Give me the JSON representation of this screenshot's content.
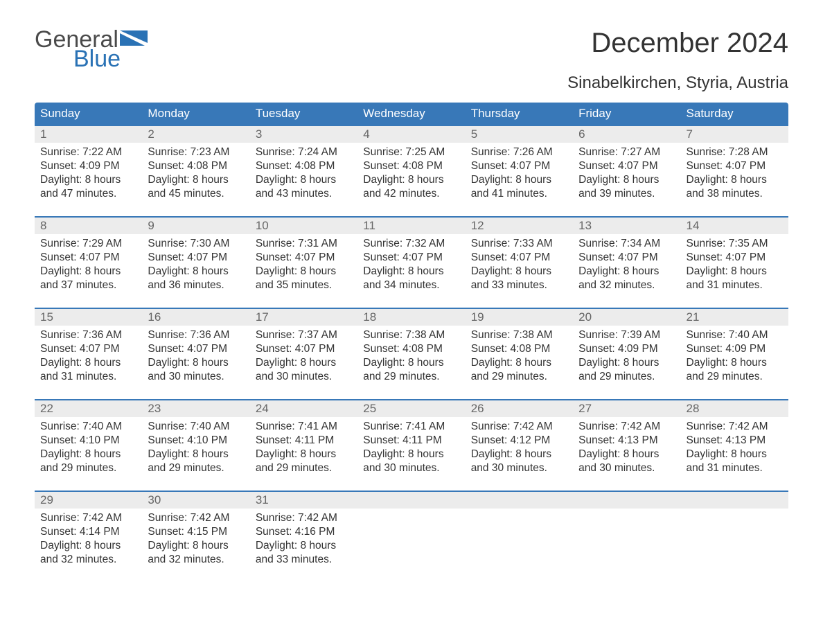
{
  "logo": {
    "word1": "General",
    "word2": "Blue"
  },
  "title": "December 2024",
  "subtitle": "Sinabelkirchen, Styria, Austria",
  "colors": {
    "header_bg": "#3878b8",
    "header_text": "#ffffff",
    "daynum_bg": "#ececec",
    "daynum_text": "#666666",
    "body_text": "#333333",
    "logo_gray": "#4a4a4a",
    "logo_blue": "#2a72b5",
    "week_border": "#3878b8",
    "page_bg": "#ffffff"
  },
  "fontsizes": {
    "title": 40,
    "subtitle": 24,
    "day_header": 17,
    "day_num": 17,
    "body": 15.5,
    "logo": 34
  },
  "day_names": [
    "Sunday",
    "Monday",
    "Tuesday",
    "Wednesday",
    "Thursday",
    "Friday",
    "Saturday"
  ],
  "weeks": [
    [
      {
        "n": "1",
        "sunrise": "Sunrise: 7:22 AM",
        "sunset": "Sunset: 4:09 PM",
        "d1": "Daylight: 8 hours",
        "d2": "and 47 minutes."
      },
      {
        "n": "2",
        "sunrise": "Sunrise: 7:23 AM",
        "sunset": "Sunset: 4:08 PM",
        "d1": "Daylight: 8 hours",
        "d2": "and 45 minutes."
      },
      {
        "n": "3",
        "sunrise": "Sunrise: 7:24 AM",
        "sunset": "Sunset: 4:08 PM",
        "d1": "Daylight: 8 hours",
        "d2": "and 43 minutes."
      },
      {
        "n": "4",
        "sunrise": "Sunrise: 7:25 AM",
        "sunset": "Sunset: 4:08 PM",
        "d1": "Daylight: 8 hours",
        "d2": "and 42 minutes."
      },
      {
        "n": "5",
        "sunrise": "Sunrise: 7:26 AM",
        "sunset": "Sunset: 4:07 PM",
        "d1": "Daylight: 8 hours",
        "d2": "and 41 minutes."
      },
      {
        "n": "6",
        "sunrise": "Sunrise: 7:27 AM",
        "sunset": "Sunset: 4:07 PM",
        "d1": "Daylight: 8 hours",
        "d2": "and 39 minutes."
      },
      {
        "n": "7",
        "sunrise": "Sunrise: 7:28 AM",
        "sunset": "Sunset: 4:07 PM",
        "d1": "Daylight: 8 hours",
        "d2": "and 38 minutes."
      }
    ],
    [
      {
        "n": "8",
        "sunrise": "Sunrise: 7:29 AM",
        "sunset": "Sunset: 4:07 PM",
        "d1": "Daylight: 8 hours",
        "d2": "and 37 minutes."
      },
      {
        "n": "9",
        "sunrise": "Sunrise: 7:30 AM",
        "sunset": "Sunset: 4:07 PM",
        "d1": "Daylight: 8 hours",
        "d2": "and 36 minutes."
      },
      {
        "n": "10",
        "sunrise": "Sunrise: 7:31 AM",
        "sunset": "Sunset: 4:07 PM",
        "d1": "Daylight: 8 hours",
        "d2": "and 35 minutes."
      },
      {
        "n": "11",
        "sunrise": "Sunrise: 7:32 AM",
        "sunset": "Sunset: 4:07 PM",
        "d1": "Daylight: 8 hours",
        "d2": "and 34 minutes."
      },
      {
        "n": "12",
        "sunrise": "Sunrise: 7:33 AM",
        "sunset": "Sunset: 4:07 PM",
        "d1": "Daylight: 8 hours",
        "d2": "and 33 minutes."
      },
      {
        "n": "13",
        "sunrise": "Sunrise: 7:34 AM",
        "sunset": "Sunset: 4:07 PM",
        "d1": "Daylight: 8 hours",
        "d2": "and 32 minutes."
      },
      {
        "n": "14",
        "sunrise": "Sunrise: 7:35 AM",
        "sunset": "Sunset: 4:07 PM",
        "d1": "Daylight: 8 hours",
        "d2": "and 31 minutes."
      }
    ],
    [
      {
        "n": "15",
        "sunrise": "Sunrise: 7:36 AM",
        "sunset": "Sunset: 4:07 PM",
        "d1": "Daylight: 8 hours",
        "d2": "and 31 minutes."
      },
      {
        "n": "16",
        "sunrise": "Sunrise: 7:36 AM",
        "sunset": "Sunset: 4:07 PM",
        "d1": "Daylight: 8 hours",
        "d2": "and 30 minutes."
      },
      {
        "n": "17",
        "sunrise": "Sunrise: 7:37 AM",
        "sunset": "Sunset: 4:07 PM",
        "d1": "Daylight: 8 hours",
        "d2": "and 30 minutes."
      },
      {
        "n": "18",
        "sunrise": "Sunrise: 7:38 AM",
        "sunset": "Sunset: 4:08 PM",
        "d1": "Daylight: 8 hours",
        "d2": "and 29 minutes."
      },
      {
        "n": "19",
        "sunrise": "Sunrise: 7:38 AM",
        "sunset": "Sunset: 4:08 PM",
        "d1": "Daylight: 8 hours",
        "d2": "and 29 minutes."
      },
      {
        "n": "20",
        "sunrise": "Sunrise: 7:39 AM",
        "sunset": "Sunset: 4:09 PM",
        "d1": "Daylight: 8 hours",
        "d2": "and 29 minutes."
      },
      {
        "n": "21",
        "sunrise": "Sunrise: 7:40 AM",
        "sunset": "Sunset: 4:09 PM",
        "d1": "Daylight: 8 hours",
        "d2": "and 29 minutes."
      }
    ],
    [
      {
        "n": "22",
        "sunrise": "Sunrise: 7:40 AM",
        "sunset": "Sunset: 4:10 PM",
        "d1": "Daylight: 8 hours",
        "d2": "and 29 minutes."
      },
      {
        "n": "23",
        "sunrise": "Sunrise: 7:40 AM",
        "sunset": "Sunset: 4:10 PM",
        "d1": "Daylight: 8 hours",
        "d2": "and 29 minutes."
      },
      {
        "n": "24",
        "sunrise": "Sunrise: 7:41 AM",
        "sunset": "Sunset: 4:11 PM",
        "d1": "Daylight: 8 hours",
        "d2": "and 29 minutes."
      },
      {
        "n": "25",
        "sunrise": "Sunrise: 7:41 AM",
        "sunset": "Sunset: 4:11 PM",
        "d1": "Daylight: 8 hours",
        "d2": "and 30 minutes."
      },
      {
        "n": "26",
        "sunrise": "Sunrise: 7:42 AM",
        "sunset": "Sunset: 4:12 PM",
        "d1": "Daylight: 8 hours",
        "d2": "and 30 minutes."
      },
      {
        "n": "27",
        "sunrise": "Sunrise: 7:42 AM",
        "sunset": "Sunset: 4:13 PM",
        "d1": "Daylight: 8 hours",
        "d2": "and 30 minutes."
      },
      {
        "n": "28",
        "sunrise": "Sunrise: 7:42 AM",
        "sunset": "Sunset: 4:13 PM",
        "d1": "Daylight: 8 hours",
        "d2": "and 31 minutes."
      }
    ],
    [
      {
        "n": "29",
        "sunrise": "Sunrise: 7:42 AM",
        "sunset": "Sunset: 4:14 PM",
        "d1": "Daylight: 8 hours",
        "d2": "and 32 minutes."
      },
      {
        "n": "30",
        "sunrise": "Sunrise: 7:42 AM",
        "sunset": "Sunset: 4:15 PM",
        "d1": "Daylight: 8 hours",
        "d2": "and 32 minutes."
      },
      {
        "n": "31",
        "sunrise": "Sunrise: 7:42 AM",
        "sunset": "Sunset: 4:16 PM",
        "d1": "Daylight: 8 hours",
        "d2": "and 33 minutes."
      },
      {
        "n": "",
        "sunrise": "",
        "sunset": "",
        "d1": "",
        "d2": ""
      },
      {
        "n": "",
        "sunrise": "",
        "sunset": "",
        "d1": "",
        "d2": ""
      },
      {
        "n": "",
        "sunrise": "",
        "sunset": "",
        "d1": "",
        "d2": ""
      },
      {
        "n": "",
        "sunrise": "",
        "sunset": "",
        "d1": "",
        "d2": ""
      }
    ]
  ]
}
